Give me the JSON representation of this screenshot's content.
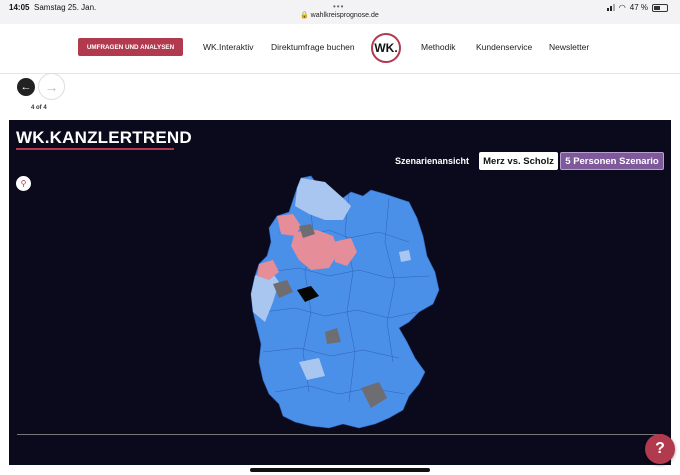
{
  "status": {
    "time": "14:05",
    "date": "Samstag 25. Jan.",
    "url": "wahlkreisprognose.de",
    "battery": "47 %",
    "battery_level": 0.47
  },
  "nav": {
    "cta": "UMFRAGEN UND ANALYSEN",
    "links": [
      "WK.Interaktiv",
      "Direktumfrage buchen",
      "Methodik",
      "Kundenservice",
      "Newsletter"
    ],
    "logo": "WK."
  },
  "pager": {
    "label": "4 of 4",
    "prev_icon": "arrow-left-icon",
    "next_icon": "arrow-right-icon"
  },
  "panel": {
    "title": "WK.KANZLERTREND",
    "scenario_label": "Szenarienansicht",
    "scenario_a": "Merz vs. Scholz",
    "scenario_b": "5 Personen Szenario",
    "zoom_icon": "search-icon"
  },
  "help": {
    "label": "?"
  },
  "colors": {
    "accent": "#b13a4e",
    "panel_bg": "#0b0a1c",
    "map_blue": "#4a8fe8",
    "map_light_blue": "#a9c6f0",
    "map_red": "#e58d98",
    "map_gray": "#6e6e72",
    "scenario_purple": "#7e5a9a"
  }
}
